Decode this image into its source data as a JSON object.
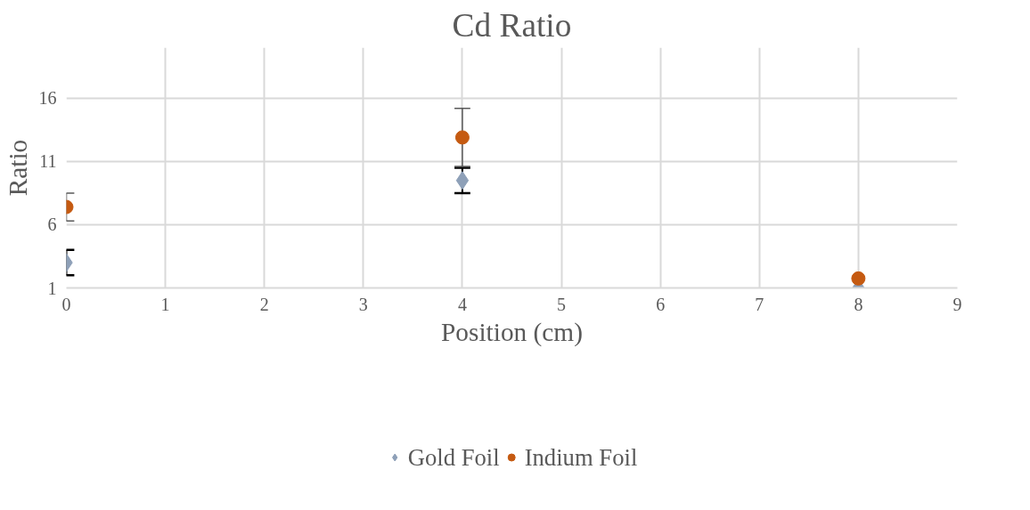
{
  "chart_data": {
    "type": "scatter",
    "title": "Cd Ratio",
    "xlabel": "Position (cm)",
    "ylabel": "Ratio",
    "xlim": [
      0,
      9
    ],
    "xticks": [
      0,
      1,
      2,
      3,
      4,
      5,
      6,
      7,
      8,
      9
    ],
    "ylim": [
      1,
      20
    ],
    "yticks": [
      1,
      6,
      11,
      16
    ],
    "grid": true,
    "legend": "bottom",
    "series": [
      {
        "name": "Gold Foil",
        "color": "#8ea0b8",
        "marker": "diamond",
        "x": [
          0,
          4,
          8
        ],
        "values": [
          3.0,
          9.5,
          1.0
        ],
        "errors": [
          1.0,
          1.0,
          null
        ]
      },
      {
        "name": "Indium Foil",
        "color": "#c55a11",
        "marker": "circle",
        "x": [
          0,
          4,
          8
        ],
        "values": [
          7.4,
          12.9,
          1.75
        ],
        "errors": [
          1.1,
          2.3,
          null
        ]
      }
    ]
  }
}
